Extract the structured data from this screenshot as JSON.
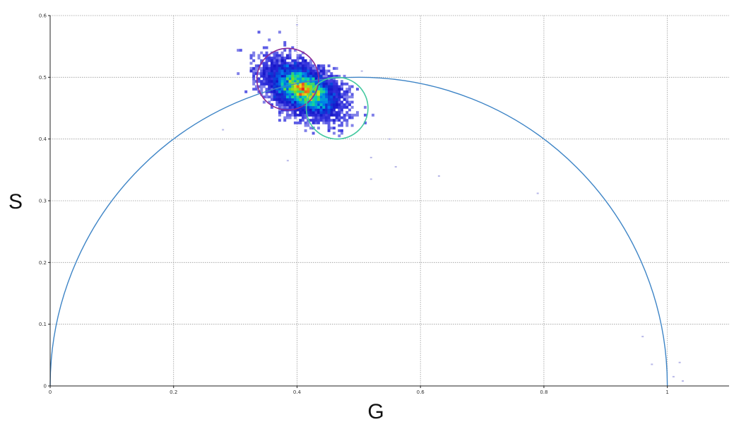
{
  "chart_data": {
    "type": "scatter",
    "subtype": "phasor-plot-2d-histogram",
    "xlabel": "G",
    "ylabel": "S",
    "xlim": [
      0,
      1.1
    ],
    "ylim": [
      0,
      0.6
    ],
    "x_ticks": [
      "0",
      "0.2",
      "0.4",
      "0.6",
      "0.8",
      "1"
    ],
    "y_ticks": [
      "0",
      "0.1",
      "0.2",
      "0.3",
      "0.4",
      "0.5",
      "0.6"
    ],
    "grid": true,
    "universal_semicircle": {
      "center": [
        0.5,
        0
      ],
      "radius": 0.5,
      "color": "#3d84c6"
    },
    "cursors": [
      {
        "center": [
          0.385,
          0.497
        ],
        "radius": 0.05,
        "color": "#8a2b97"
      },
      {
        "center": [
          0.465,
          0.45
        ],
        "radius": 0.05,
        "color": "#45c9a0"
      }
    ],
    "density_cluster": {
      "center": [
        0.41,
        0.48
      ],
      "spread": [
        0.04,
        0.025
      ],
      "peak_color": "#e8261c"
    },
    "outliers": [
      [
        0.4,
        0.585
      ],
      [
        0.28,
        0.415
      ],
      [
        0.385,
        0.365
      ],
      [
        0.505,
        0.51
      ],
      [
        0.52,
        0.37
      ],
      [
        0.56,
        0.355
      ],
      [
        0.52,
        0.335
      ],
      [
        0.63,
        0.34
      ],
      [
        0.79,
        0.312
      ],
      [
        0.96,
        0.08
      ],
      [
        0.975,
        0.035
      ],
      [
        1.01,
        0.015
      ],
      [
        1.02,
        0.038
      ],
      [
        1.025,
        0.008
      ],
      [
        0.55,
        0.4
      ]
    ]
  }
}
